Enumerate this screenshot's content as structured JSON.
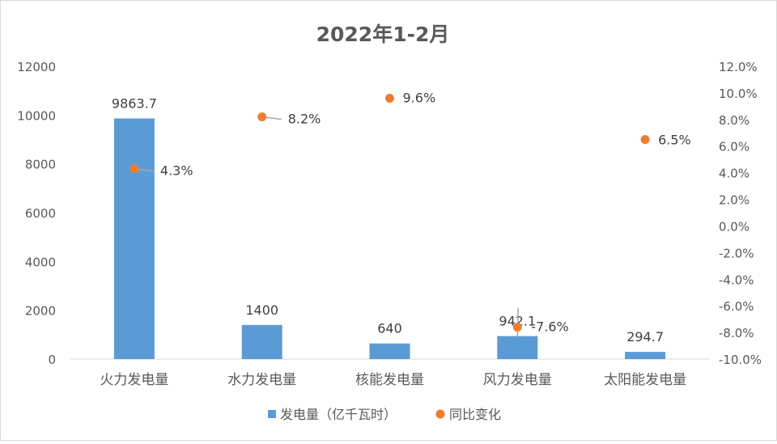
{
  "chart_data": {
    "type": "bar",
    "title": "2022年1-2月",
    "xlabel": "",
    "ylabel": "",
    "categories": [
      "火力发电量",
      "水力发电量",
      "核能发电量",
      "风力发电量",
      "太阳能发电量"
    ],
    "series": [
      {
        "name": "发电量（亿千瓦时）",
        "type": "bar",
        "axis": "left",
        "color": "#5b9bd5",
        "values": [
          9863.7,
          1400,
          640,
          942.1,
          294.7
        ],
        "labels": [
          "9863.7",
          "1400",
          "640",
          "942.1",
          "294.7"
        ]
      },
      {
        "name": "同比变化",
        "type": "scatter",
        "axis": "right",
        "color": "#ed7d31",
        "values": [
          4.3,
          8.2,
          9.6,
          -7.6,
          6.5
        ],
        "labels": [
          "4.3%",
          "8.2%",
          "9.6%",
          "-7.6%",
          "6.5%"
        ]
      }
    ],
    "ylim": [
      0,
      12000
    ],
    "y2lim": [
      -10,
      12
    ],
    "yticks": [
      "0",
      "2000",
      "4000",
      "6000",
      "8000",
      "10000",
      "12000"
    ],
    "y2ticks": [
      "-10.0%",
      "-8.0%",
      "-6.0%",
      "-4.0%",
      "-2.0%",
      "0.0%",
      "2.0%",
      "4.0%",
      "6.0%",
      "8.0%",
      "10.0%",
      "12.0%"
    ],
    "grid": false,
    "legend_position": "bottom"
  }
}
